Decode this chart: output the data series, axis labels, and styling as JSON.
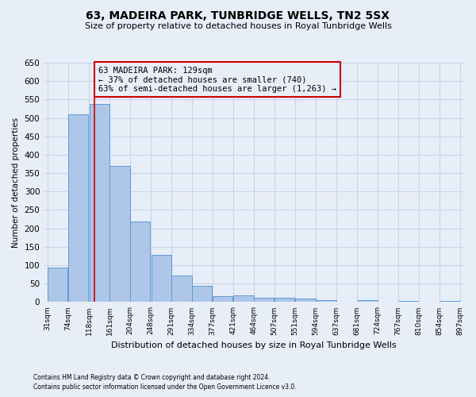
{
  "title": "63, MADEIRA PARK, TUNBRIDGE WELLS, TN2 5SX",
  "subtitle": "Size of property relative to detached houses in Royal Tunbridge Wells",
  "xlabel": "Distribution of detached houses by size in Royal Tunbridge Wells",
  "ylabel": "Number of detached properties",
  "footer1": "Contains HM Land Registry data © Crown copyright and database right 2024.",
  "footer2": "Contains public sector information licensed under the Open Government Licence v3.0.",
  "annotation_title": "63 MADEIRA PARK: 129sqm",
  "annotation_line2": "← 37% of detached houses are smaller (740)",
  "annotation_line3": "63% of semi-detached houses are larger (1,263) →",
  "property_size": 129,
  "bar_edges": [
    31,
    74,
    118,
    161,
    204,
    248,
    291,
    334,
    377,
    421,
    464,
    507,
    551,
    594,
    637,
    681,
    724,
    767,
    810,
    854,
    897
  ],
  "bar_heights": [
    93,
    510,
    538,
    369,
    218,
    128,
    73,
    43,
    16,
    19,
    11,
    12,
    9,
    5,
    0,
    5,
    0,
    4,
    0,
    4
  ],
  "bar_color": "#aec6e8",
  "bar_edge_color": "#5b9bd5",
  "vline_color": "#cc0000",
  "vline_x": 129,
  "ylim": [
    0,
    650
  ],
  "yticks": [
    0,
    50,
    100,
    150,
    200,
    250,
    300,
    350,
    400,
    450,
    500,
    550,
    600,
    650
  ],
  "grid_color": "#c8d4e8",
  "annotation_box_color": "#cc0000",
  "background_color": "#e8eef8"
}
